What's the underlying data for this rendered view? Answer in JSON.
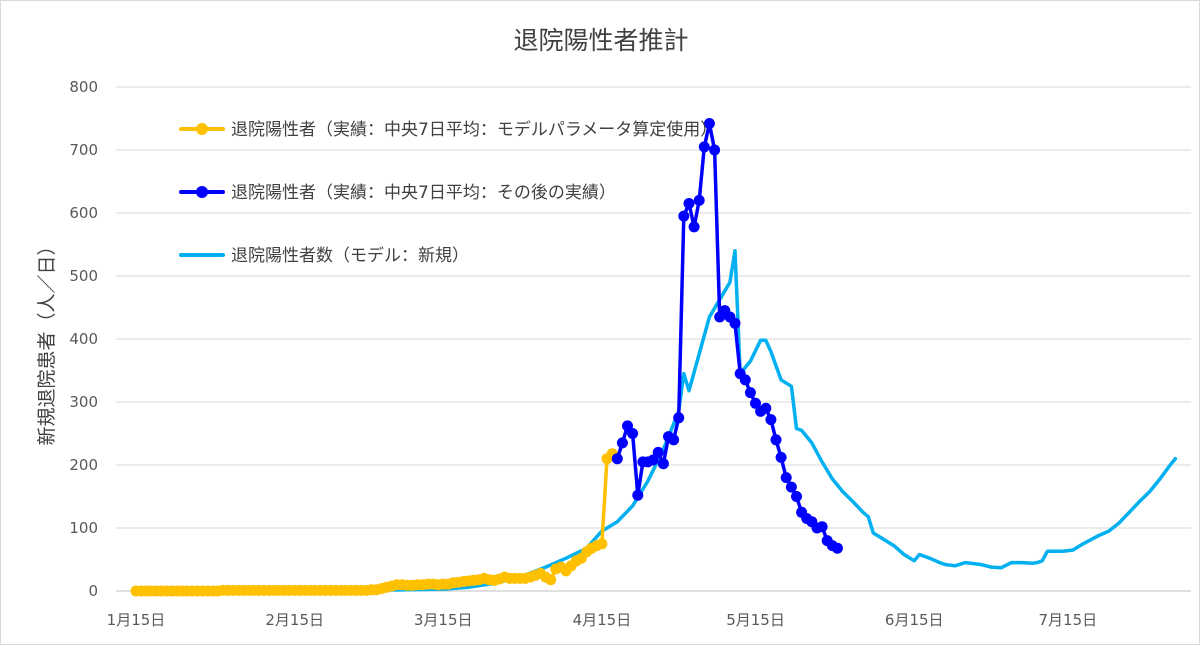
{
  "chart_data": {
    "type": "line",
    "title": "退院陽性者推計",
    "ylabel": "新規退院患者（人／日）",
    "xlabel": "",
    "ylim": [
      0,
      800
    ],
    "yticks": [
      0,
      100,
      200,
      300,
      400,
      500,
      600,
      700,
      800
    ],
    "xlim": [
      "2020-01-15",
      "2020-07-31"
    ],
    "xticks": [
      {
        "date": "2020-01-15",
        "label": "1月15日"
      },
      {
        "date": "2020-02-15",
        "label": "2月15日"
      },
      {
        "date": "2020-03-15",
        "label": "3月15日"
      },
      {
        "date": "2020-04-15",
        "label": "4月15日"
      },
      {
        "date": "2020-05-15",
        "label": "5月15日"
      },
      {
        "date": "2020-06-15",
        "label": "6月15日"
      },
      {
        "date": "2020-07-15",
        "label": "7月15日"
      }
    ],
    "grid": true,
    "legend_position": "top-left",
    "series": [
      {
        "name": "退院陽性者（実績：中央7日平均：モデルパラメータ算定使用）",
        "color": "#ffc000",
        "marker": true,
        "points": [
          [
            "2020-01-15",
            0
          ],
          [
            "2020-01-16",
            0
          ],
          [
            "2020-01-17",
            0
          ],
          [
            "2020-01-18",
            0
          ],
          [
            "2020-01-19",
            0
          ],
          [
            "2020-01-20",
            0
          ],
          [
            "2020-01-21",
            0
          ],
          [
            "2020-01-22",
            0
          ],
          [
            "2020-01-23",
            0
          ],
          [
            "2020-01-24",
            0
          ],
          [
            "2020-01-25",
            0
          ],
          [
            "2020-01-26",
            0
          ],
          [
            "2020-01-27",
            0
          ],
          [
            "2020-01-28",
            0
          ],
          [
            "2020-01-29",
            0
          ],
          [
            "2020-01-30",
            0
          ],
          [
            "2020-01-31",
            0
          ],
          [
            "2020-02-01",
            1
          ],
          [
            "2020-02-02",
            1
          ],
          [
            "2020-02-03",
            1
          ],
          [
            "2020-02-04",
            1
          ],
          [
            "2020-02-05",
            1
          ],
          [
            "2020-02-06",
            1
          ],
          [
            "2020-02-07",
            1
          ],
          [
            "2020-02-08",
            1
          ],
          [
            "2020-02-09",
            1
          ],
          [
            "2020-02-10",
            1
          ],
          [
            "2020-02-11",
            1
          ],
          [
            "2020-02-12",
            1
          ],
          [
            "2020-02-13",
            1
          ],
          [
            "2020-02-14",
            1
          ],
          [
            "2020-02-15",
            1
          ],
          [
            "2020-02-16",
            1
          ],
          [
            "2020-02-17",
            1
          ],
          [
            "2020-02-18",
            1
          ],
          [
            "2020-02-19",
            1
          ],
          [
            "2020-02-20",
            1
          ],
          [
            "2020-02-21",
            1
          ],
          [
            "2020-02-22",
            1
          ],
          [
            "2020-02-23",
            1
          ],
          [
            "2020-02-24",
            1
          ],
          [
            "2020-02-25",
            1
          ],
          [
            "2020-02-26",
            1
          ],
          [
            "2020-02-27",
            1
          ],
          [
            "2020-02-28",
            1
          ],
          [
            "2020-02-29",
            1
          ],
          [
            "2020-03-01",
            2
          ],
          [
            "2020-03-02",
            2
          ],
          [
            "2020-03-03",
            4
          ],
          [
            "2020-03-04",
            6
          ],
          [
            "2020-03-05",
            8
          ],
          [
            "2020-03-06",
            10
          ],
          [
            "2020-03-07",
            10
          ],
          [
            "2020-03-08",
            9
          ],
          [
            "2020-03-09",
            9
          ],
          [
            "2020-03-10",
            10
          ],
          [
            "2020-03-11",
            10
          ],
          [
            "2020-03-12",
            11
          ],
          [
            "2020-03-13",
            11
          ],
          [
            "2020-03-14",
            10
          ],
          [
            "2020-03-15",
            11
          ],
          [
            "2020-03-16",
            11
          ],
          [
            "2020-03-17",
            13
          ],
          [
            "2020-03-18",
            14
          ],
          [
            "2020-03-19",
            15
          ],
          [
            "2020-03-20",
            16
          ],
          [
            "2020-03-21",
            17
          ],
          [
            "2020-03-22",
            18
          ],
          [
            "2020-03-23",
            20
          ],
          [
            "2020-03-24",
            18
          ],
          [
            "2020-03-25",
            17
          ],
          [
            "2020-03-26",
            19
          ],
          [
            "2020-03-27",
            22
          ],
          [
            "2020-03-28",
            20
          ],
          [
            "2020-03-29",
            20
          ],
          [
            "2020-03-30",
            20
          ],
          [
            "2020-03-31",
            20
          ],
          [
            "2020-04-01",
            22
          ],
          [
            "2020-04-02",
            25
          ],
          [
            "2020-04-03",
            28
          ],
          [
            "2020-04-04",
            22
          ],
          [
            "2020-04-05",
            18
          ],
          [
            "2020-04-06",
            35
          ],
          [
            "2020-04-07",
            38
          ],
          [
            "2020-04-08",
            32
          ],
          [
            "2020-04-09",
            40
          ],
          [
            "2020-04-10",
            48
          ],
          [
            "2020-04-11",
            52
          ],
          [
            "2020-04-12",
            62
          ],
          [
            "2020-04-13",
            68
          ],
          [
            "2020-04-14",
            72
          ],
          [
            "2020-04-15",
            75
          ],
          [
            "2020-04-16",
            210
          ],
          [
            "2020-04-17",
            218
          ]
        ]
      },
      {
        "name": "退院陽性者（実績：中央7日平均：その後の実績）",
        "color": "#0000ff",
        "marker": true,
        "points": [
          [
            "2020-04-18",
            210
          ],
          [
            "2020-04-19",
            235
          ],
          [
            "2020-04-20",
            262
          ],
          [
            "2020-04-21",
            250
          ],
          [
            "2020-04-22",
            152
          ],
          [
            "2020-04-23",
            205
          ],
          [
            "2020-04-24",
            205
          ],
          [
            "2020-04-25",
            208
          ],
          [
            "2020-04-26",
            220
          ],
          [
            "2020-04-27",
            202
          ],
          [
            "2020-04-28",
            245
          ],
          [
            "2020-04-29",
            240
          ],
          [
            "2020-04-30",
            275
          ],
          [
            "2020-05-01",
            595
          ],
          [
            "2020-05-02",
            615
          ],
          [
            "2020-05-03",
            578
          ],
          [
            "2020-05-04",
            620
          ],
          [
            "2020-05-05",
            705
          ],
          [
            "2020-05-06",
            742
          ],
          [
            "2020-05-07",
            700
          ],
          [
            "2020-05-08",
            435
          ],
          [
            "2020-05-09",
            445
          ],
          [
            "2020-05-10",
            435
          ],
          [
            "2020-05-11",
            425
          ],
          [
            "2020-05-12",
            345
          ],
          [
            "2020-05-13",
            335
          ],
          [
            "2020-05-14",
            315
          ],
          [
            "2020-05-15",
            298
          ],
          [
            "2020-05-16",
            285
          ],
          [
            "2020-05-17",
            290
          ],
          [
            "2020-05-18",
            272
          ],
          [
            "2020-05-19",
            240
          ],
          [
            "2020-05-20",
            212
          ],
          [
            "2020-05-21",
            180
          ],
          [
            "2020-05-22",
            165
          ],
          [
            "2020-05-23",
            150
          ],
          [
            "2020-05-24",
            125
          ],
          [
            "2020-05-25",
            115
          ],
          [
            "2020-05-26",
            110
          ],
          [
            "2020-05-27",
            100
          ],
          [
            "2020-05-28",
            102
          ],
          [
            "2020-05-29",
            80
          ],
          [
            "2020-05-30",
            72
          ],
          [
            "2020-05-31",
            68
          ]
        ]
      },
      {
        "name": "退院陽性者数（モデル：新規）",
        "color": "#00b0f0",
        "marker": false,
        "points": [
          [
            "2020-02-15",
            0
          ],
          [
            "2020-03-01",
            1
          ],
          [
            "2020-03-15",
            3
          ],
          [
            "2020-03-20",
            6
          ],
          [
            "2020-03-25",
            12
          ],
          [
            "2020-03-30",
            22
          ],
          [
            "2020-04-04",
            38
          ],
          [
            "2020-04-08",
            52
          ],
          [
            "2020-04-12",
            68
          ],
          [
            "2020-04-15",
            95
          ],
          [
            "2020-04-18",
            110
          ],
          [
            "2020-04-21",
            135
          ],
          [
            "2020-04-24",
            175
          ],
          [
            "2020-04-27",
            225
          ],
          [
            "2020-04-30",
            285
          ],
          [
            "2020-05-01",
            345
          ],
          [
            "2020-05-02",
            318
          ],
          [
            "2020-05-06",
            435
          ],
          [
            "2020-05-10",
            490
          ],
          [
            "2020-05-11",
            540
          ],
          [
            "2020-05-12",
            345
          ],
          [
            "2020-05-14",
            365
          ],
          [
            "2020-05-16",
            398
          ],
          [
            "2020-05-17",
            398
          ],
          [
            "2020-05-18",
            380
          ],
          [
            "2020-05-20",
            335
          ],
          [
            "2020-05-22",
            325
          ],
          [
            "2020-05-23",
            258
          ],
          [
            "2020-05-24",
            255
          ],
          [
            "2020-05-26",
            235
          ],
          [
            "2020-05-28",
            205
          ],
          [
            "2020-05-30",
            178
          ],
          [
            "2020-06-01",
            158
          ],
          [
            "2020-06-03",
            142
          ],
          [
            "2020-06-05",
            125
          ],
          [
            "2020-06-06",
            118
          ],
          [
            "2020-06-07",
            92
          ],
          [
            "2020-06-09",
            82
          ],
          [
            "2020-06-11",
            72
          ],
          [
            "2020-06-13",
            58
          ],
          [
            "2020-06-15",
            48
          ],
          [
            "2020-06-16",
            58
          ],
          [
            "2020-06-18",
            52
          ],
          [
            "2020-06-20",
            45
          ],
          [
            "2020-06-21",
            42
          ],
          [
            "2020-06-23",
            40
          ],
          [
            "2020-06-25",
            45
          ],
          [
            "2020-06-28",
            42
          ],
          [
            "2020-06-30",
            38
          ],
          [
            "2020-07-02",
            37
          ],
          [
            "2020-07-04",
            45
          ],
          [
            "2020-07-06",
            45
          ],
          [
            "2020-07-08",
            44
          ],
          [
            "2020-07-09",
            45
          ],
          [
            "2020-07-10",
            48
          ],
          [
            "2020-07-11",
            63
          ],
          [
            "2020-07-14",
            63
          ],
          [
            "2020-07-16",
            65
          ],
          [
            "2020-07-18",
            75
          ],
          [
            "2020-07-21",
            88
          ],
          [
            "2020-07-23",
            95
          ],
          [
            "2020-07-25",
            108
          ],
          [
            "2020-07-27",
            125
          ],
          [
            "2020-07-29",
            142
          ],
          [
            "2020-07-31",
            158
          ],
          [
            "2020-08-02",
            178
          ],
          [
            "2020-08-04",
            200
          ],
          [
            "2020-08-05",
            210
          ]
        ]
      }
    ]
  }
}
